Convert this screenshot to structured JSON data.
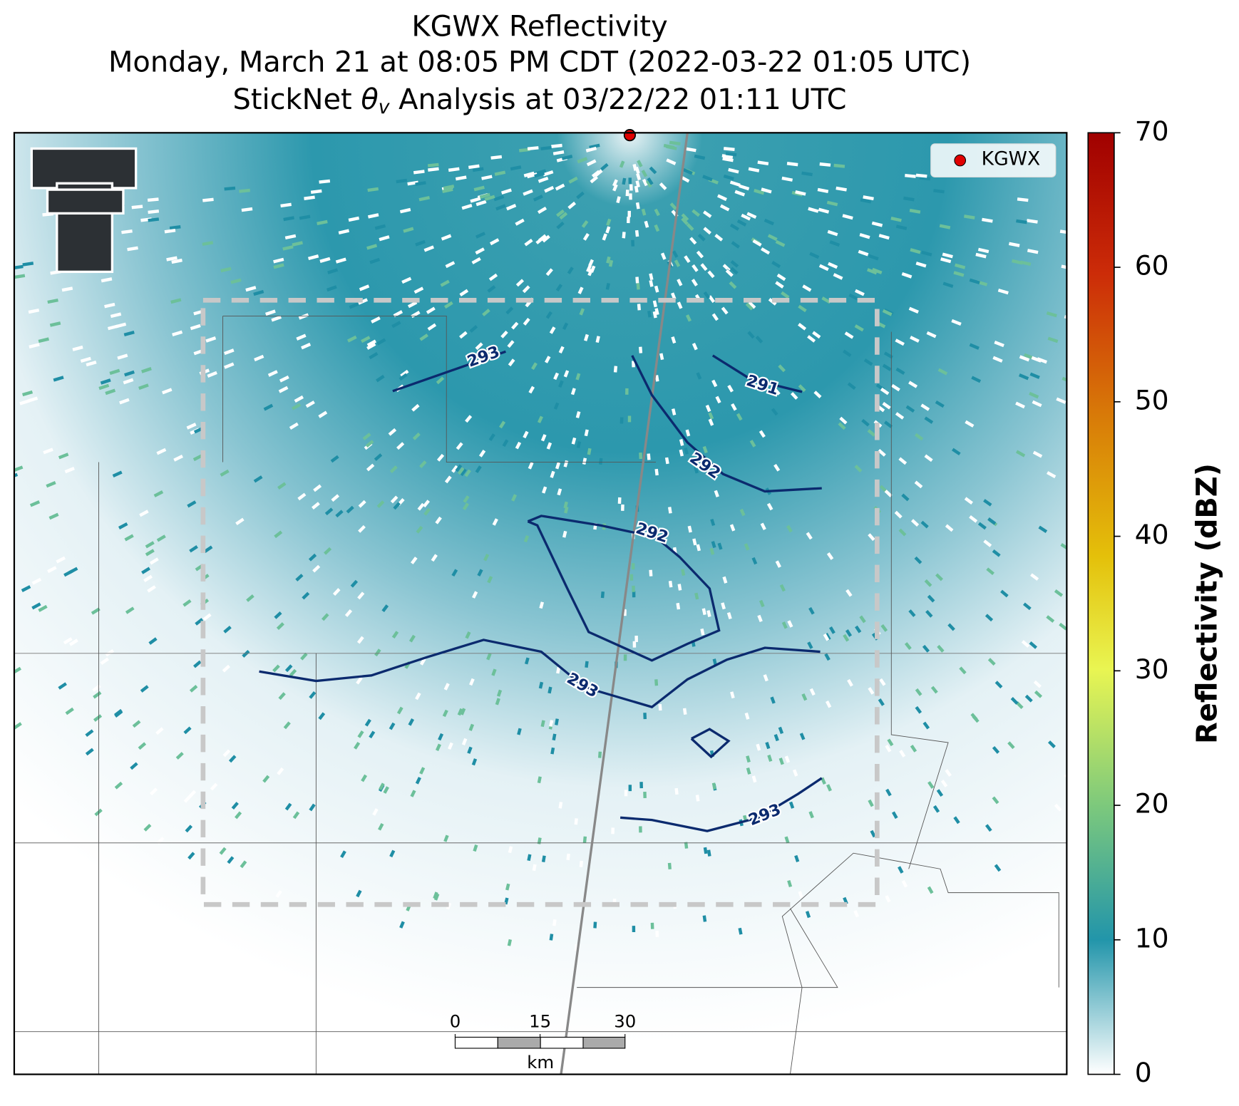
{
  "title": {
    "line1": "KGWX Reflectivity",
    "line2": "Monday, March 21 at 08:05 PM CDT (2022-03-22 01:05 UTC)",
    "line3_before": "StickNet ",
    "line3_symbol": "θ",
    "line3_sub": "v",
    "line3_after": " Analysis at 03/22/22 01:11 UTC"
  },
  "legend": {
    "label": "KGWX",
    "color": "#e00000"
  },
  "colorbar": {
    "label": "Reflectivity (dBZ)",
    "lim": [
      0,
      70
    ],
    "ticks": [
      0,
      10,
      20,
      30,
      40,
      50,
      60,
      70
    ]
  },
  "contours": [
    291,
    292,
    292,
    293,
    293,
    293
  ],
  "scale_bar": {
    "ticks": [
      0,
      15,
      30
    ],
    "unit": "km"
  }
}
